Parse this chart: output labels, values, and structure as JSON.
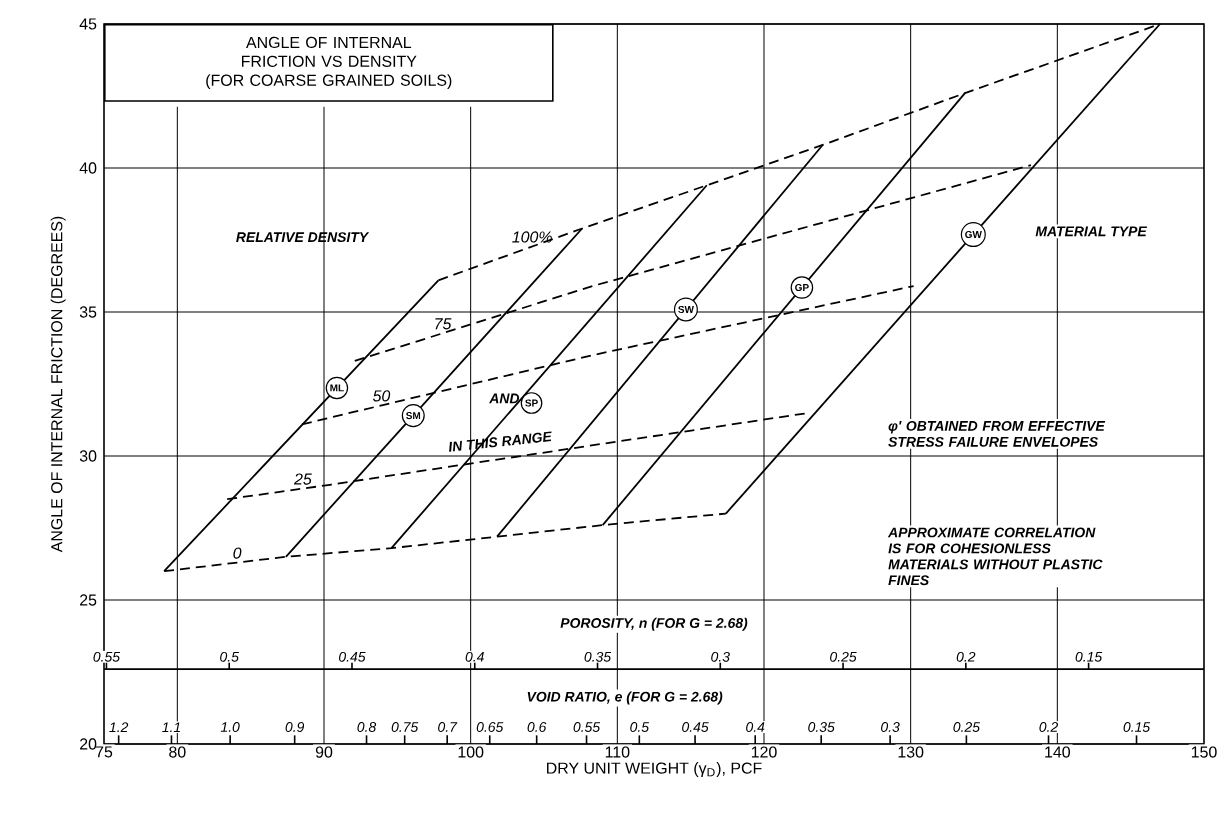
{
  "chart_data": {
    "type": "line",
    "title": "ANGLE OF INTERNAL FRICTION VS DENSITY",
    "subtitle": "(FOR COARSE GRAINED SOILS)",
    "xlabel": "DRY UNIT WEIGHT (γ$_{D}$), PCF",
    "ylabel": "ANGLE OF INTERNAL FRICTION (DEGREES)",
    "x2label": "POROSITY, n (FOR G = 2.68)",
    "xlim": [
      75,
      150
    ],
    "ylim": [
      20,
      45
    ],
    "xticks": [
      75,
      80,
      90,
      100,
      110,
      120,
      130,
      140,
      150
    ],
    "yticks": [
      20,
      25,
      30,
      35,
      40,
      45
    ],
    "x2lim": [
      0.551,
      0.103
    ],
    "x2ticks": [
      0.55,
      {
        "value": 0.5,
        "label": "0.5"
      },
      0.45,
      {
        "value": 0.4,
        "label": "0.4"
      },
      0.35,
      {
        "value": 0.3,
        "label": "0.3"
      },
      0.25,
      {
        "value": 0.2,
        "label": "0.2"
      },
      0.15
    ],
    "grid": true,
    "annotations": [
      "RELATIVE DENSITY",
      "MATERIAL TYPE",
      "AND",
      "IN THIS RANGE",
      "φ' OBTAINED FROM EFFECTIVE STRESS FAILURE ENVELOPES",
      "APPROXIMATE CORRELATION IS FOR COHESIONLESS MATERIALS WITHOUT PLASTIC FINES",
      "VOID RATIO, e (FOR G = 2.68)",
      "1.2",
      "1.1",
      "1.0",
      "0.9",
      "0.8",
      "0.75",
      "0.7",
      "0.65",
      "0.6",
      "0.55",
      "0.5",
      "0.45",
      "0.4",
      "0.35",
      "0.3",
      "0.25",
      "0.2",
      "0.15"
    ],
    "series": [
      {
        "name": "0",
        "color": "#000000",
        "line_style": "dashed",
        "x": [
          79.1,
          87.4,
          94.6,
          101.8,
          109.0,
          117.4
        ],
        "values": [
          26.0,
          26.5,
          26.8,
          27.2,
          27.6,
          28.0
        ]
      },
      {
        "name": "25",
        "color": "#000000",
        "line_style": "dashed",
        "x": [
          83.4,
          90.4,
          99.5,
          123.1
        ],
        "values": [
          28.5,
          29.0,
          29.7,
          31.5
        ]
      },
      {
        "name": "50",
        "color": "#000000",
        "line_style": "dashed",
        "x": [
          88.5,
          108.3,
          130.2
        ],
        "values": [
          31.1,
          33.5,
          35.9
        ]
      },
      {
        "name": "75",
        "color": "#000000",
        "line_style": "dashed",
        "x": [
          92.1,
          108.3,
          138.2
        ],
        "values": [
          33.3,
          35.9,
          40.1
        ]
      },
      {
        "name": "100%",
        "color": "#000000",
        "line_style": "dashed",
        "x": [
          97.8,
          107.6,
          116.1,
          124.0,
          133.7,
          147.0
        ],
        "values": [
          36.1,
          37.9,
          39.4,
          40.8,
          42.6,
          45.0
        ]
      },
      {
        "name": "ML",
        "color": "#000000",
        "line_style": "solid",
        "x": [
          79.1,
          97.8
        ],
        "values": [
          26.0,
          36.1
        ]
      },
      {
        "name": "SM",
        "color": "#000000",
        "line_style": "solid",
        "x": [
          87.4,
          107.6
        ],
        "values": [
          26.5,
          37.9
        ]
      },
      {
        "name": "SP",
        "color": "#000000",
        "line_style": "solid",
        "x": [
          94.6,
          116.1
        ],
        "values": [
          26.8,
          39.4
        ]
      },
      {
        "name": "SW",
        "color": "#000000",
        "line_style": "solid",
        "x": [
          101.8,
          124.0
        ],
        "values": [
          27.2,
          40.8
        ]
      },
      {
        "name": "GP",
        "color": "#000000",
        "line_style": "solid",
        "x": [
          109.0,
          133.7
        ],
        "values": [
          27.6,
          42.6
        ]
      },
      {
        "name": "GW",
        "color": "#000000",
        "line_style": "solid",
        "x": [
          117.4,
          147.0
        ],
        "values": [
          28.0,
          45.0
        ]
      }
    ]
  }
}
